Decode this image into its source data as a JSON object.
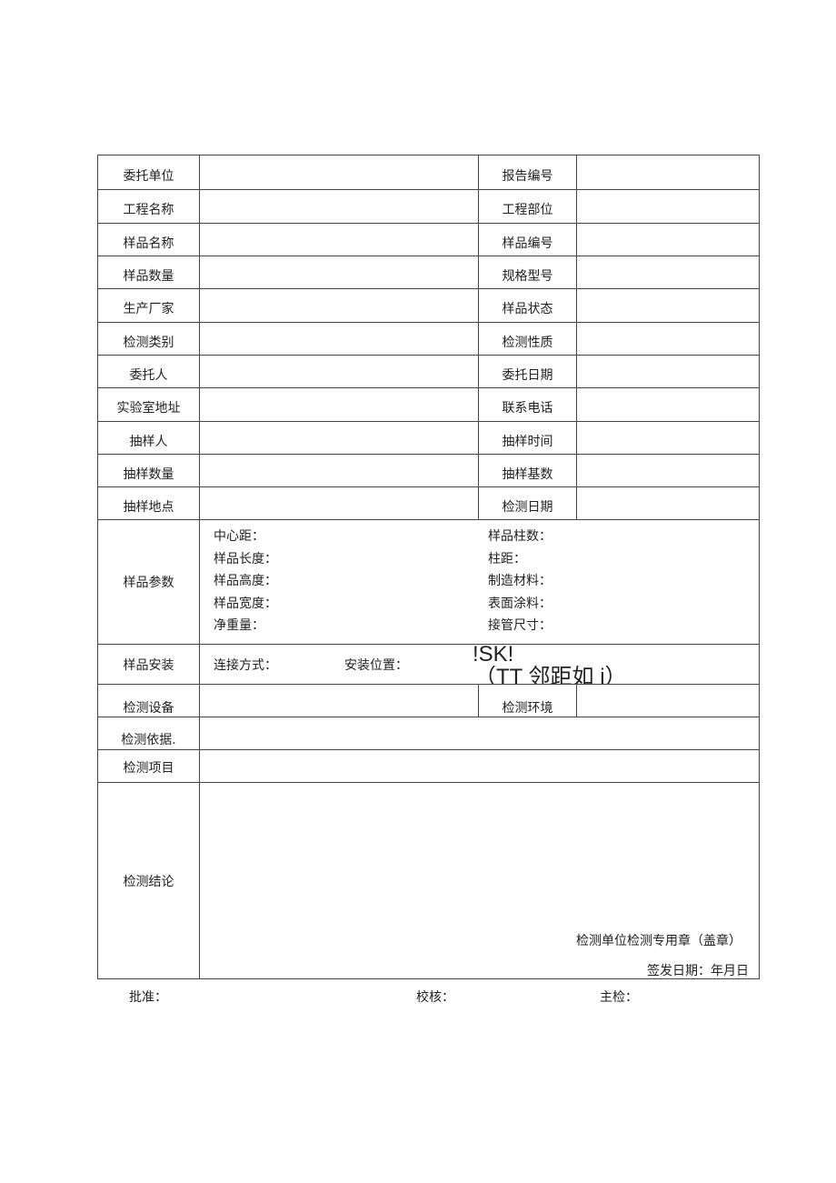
{
  "rows": [
    {
      "l": "委托单位",
      "r": "报告编号"
    },
    {
      "l": "工程名称",
      "r": "工程部位"
    },
    {
      "l": "样品名称",
      "r": "样品编号"
    },
    {
      "l": "样品数量",
      "r": "规格型号"
    },
    {
      "l": "生产厂家",
      "r": "样品状态"
    },
    {
      "l": "检测类别",
      "r": "检测性质"
    },
    {
      "l": "委托人",
      "r": "委托日期"
    },
    {
      "l": "实验室地址",
      "r": "联系电话"
    },
    {
      "l": "抽样人",
      "r": "抽样时间"
    },
    {
      "l": "抽样数量",
      "r": "抽样基数"
    },
    {
      "l": "抽样地点",
      "r": "检测日期"
    }
  ],
  "params": {
    "label": "样品参数",
    "left": [
      "中心距：",
      "样品长度：",
      "样品高度：",
      "样品宽度：",
      "净重量："
    ],
    "right": [
      "样品柱数：",
      "柱距：",
      "制造材料：",
      "表面涂料：",
      "接管尺寸："
    ]
  },
  "install": {
    "label": "样品安装",
    "connect": "连接方式：",
    "position": "安装位置：",
    "garbled1": "!SK!",
    "garbled2": "（TT 邻距如 i）"
  },
  "equipment": {
    "label": "检测设备",
    "env": "检测环境"
  },
  "basis": "检测依据.",
  "items": "检测项目",
  "conclusion": {
    "label": "检测结论",
    "seal": "检测单位检测专用章（盖章）",
    "date": "签发日期：年月日"
  },
  "footer": {
    "approve": "批准：",
    "review": "校核：",
    "inspector": "主检："
  }
}
